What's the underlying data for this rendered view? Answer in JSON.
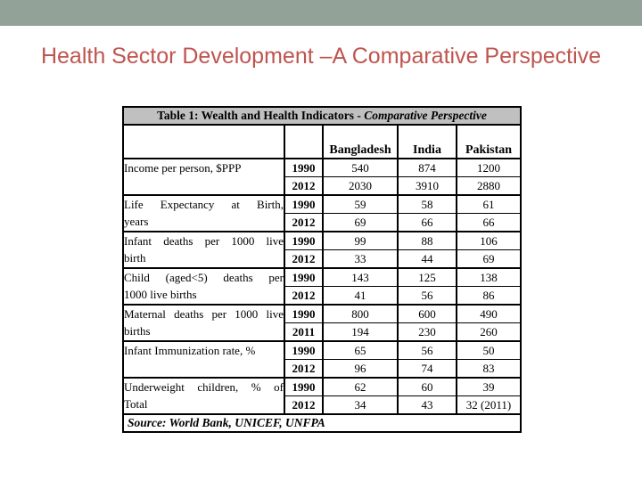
{
  "colors": {
    "band": "#93a299",
    "title": "#bf544e",
    "caption_bg": "#c0c0c0",
    "border": "#000000"
  },
  "slide": {
    "title": "Health Sector Development –A Comparative Perspective"
  },
  "table": {
    "caption_prefix": "Table 1: Wealth and Health Indicators - ",
    "caption_italic": "Comparative Perspective",
    "columns": [
      "Bangladesh",
      "India",
      "Pakistan"
    ],
    "groups": [
      {
        "indicator_lines": [
          "Income per person, $PPP"
        ],
        "sub": [
          {
            "year": "1990",
            "values": [
              "540",
              "874",
              "1200"
            ]
          },
          {
            "year": "2012",
            "values": [
              "2030",
              "3910",
              "2880"
            ]
          }
        ]
      },
      {
        "indicator_lines": [
          "Life Expectancy at Birth,",
          "years"
        ],
        "sub": [
          {
            "year": "1990",
            "values": [
              "59",
              "58",
              "61"
            ]
          },
          {
            "year": "2012",
            "values": [
              "69",
              "66",
              "66"
            ]
          }
        ]
      },
      {
        "indicator_lines": [
          "Infant deaths per 1000 live",
          "birth"
        ],
        "sub": [
          {
            "year": "1990",
            "values": [
              "99",
              "88",
              "106"
            ]
          },
          {
            "year": "2012",
            "values": [
              "33",
              "44",
              "69"
            ]
          }
        ]
      },
      {
        "indicator_lines": [
          "Child (aged<5) deaths per",
          "1000 live births"
        ],
        "sub": [
          {
            "year": "1990",
            "values": [
              "143",
              "125",
              "138"
            ]
          },
          {
            "year": "2012",
            "values": [
              "41",
              "56",
              "86"
            ]
          }
        ]
      },
      {
        "indicator_lines": [
          "Maternal deaths per 1000 live",
          "births"
        ],
        "sub": [
          {
            "year": "1990",
            "values": [
              "800",
              "600",
              "490"
            ]
          },
          {
            "year": "2011",
            "values": [
              "194",
              "230",
              "260"
            ]
          }
        ]
      },
      {
        "indicator_lines": [
          "Infant Immunization rate, %"
        ],
        "sub": [
          {
            "year": "1990",
            "values": [
              "65",
              "56",
              "50"
            ]
          },
          {
            "year": "2012",
            "values": [
              "96",
              "74",
              "83"
            ]
          }
        ]
      },
      {
        "indicator_lines": [
          "Underweight children, % of",
          "Total"
        ],
        "sub": [
          {
            "year": "1990",
            "values": [
              "62",
              "60",
              "39"
            ]
          },
          {
            "year": "2012",
            "values": [
              "34",
              "43",
              "32 (2011)"
            ]
          }
        ]
      }
    ],
    "source": "Source: World Bank, UNICEF, UNFPA"
  }
}
